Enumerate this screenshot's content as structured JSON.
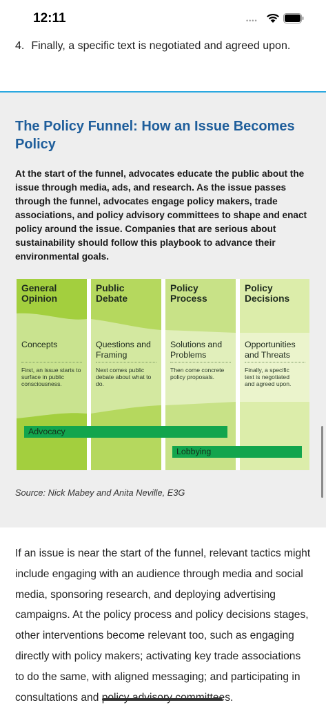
{
  "status_bar": {
    "time": "12:11",
    "dots": "••••"
  },
  "prev_list_item": {
    "number": "4.",
    "text": "Finally, a specific text is negotiated and agreed upon."
  },
  "callout": {
    "title": "The Policy Funnel: How an Issue Becomes Policy",
    "body": "At the start of the funnel, advocates educate the public about the issue through media, ads, and research. As the issue passes through the funnel, advocates engage policy makers, trade associations, and policy advisory committees to shape and enact policy around the issue. Companies that are serious about sustainability should follow this playbook to advance their environmental goals.",
    "source": "Source: Nick Mabey and Anita Neville, E3G"
  },
  "diagram": {
    "columns": [
      {
        "heading": "General Opinion",
        "subheading": "Concepts",
        "description": "First, an issue starts to surface in public consciousness."
      },
      {
        "heading": "Public Debate",
        "subheading": "Questions and Framing",
        "description": "Next comes public debate about what to do."
      },
      {
        "heading": "Policy Process",
        "subheading": "Solutions and Problems",
        "description": "Then come concrete policy proposals."
      },
      {
        "heading": "Policy Decisions",
        "subheading": "Opportunities and Threats",
        "description": "Finally, a specific text is negotiated and agreed upon."
      }
    ],
    "bars": {
      "advocacy": "Advocacy",
      "lobbying": "Lobbying"
    },
    "colors": {
      "dark_green": "#a3cf3e",
      "mid_green": "#c2df7c",
      "light_green": "#dbeba8",
      "bar_green": "#12a54d",
      "title_blue": "#1f5e9b",
      "accent_rule": "#2aa8e0"
    }
  },
  "paragraph": "If an issue is near the start of the funnel, relevant tactics might include engaging with an audience through media and social media, sponsoring research, and deploying advertising campaigns. At the policy process and policy decisions stages, other interventions become relevant too, such as engaging directly with policy makers; activating key trade associations to do the same, with aligned messaging; and participating in consultations and policy advisory committees."
}
